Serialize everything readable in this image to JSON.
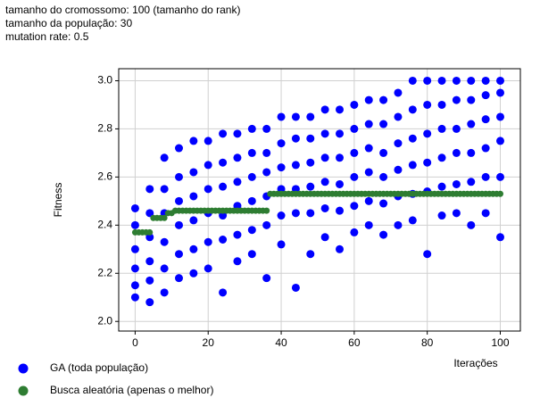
{
  "header": {
    "lines": [
      "tamanho do cromossomo: 100 (tamanho do rank)",
      "tamanho da população: 30",
      "mutation rate: 0.5"
    ]
  },
  "chart_data": {
    "type": "scatter",
    "x_label": "Iterações",
    "y_label": "Fitness",
    "xlim": [
      -4.5,
      105.5
    ],
    "ylim": [
      1.96,
      3.05
    ],
    "xticks": [
      0,
      20,
      40,
      60,
      80,
      100
    ],
    "yticks": [
      {
        "value": 2,
        "label": "2.0"
      },
      2.2,
      2.4,
      2.6,
      2.8,
      {
        "value": 3,
        "label": "3.0"
      }
    ],
    "grid": true,
    "series": [
      {
        "name": "GA (toda população)",
        "color": "#0000ff",
        "x": [
          0,
          0,
          0,
          0,
          0,
          0,
          4,
          4,
          4,
          4,
          4,
          4,
          8,
          8,
          8,
          8,
          8,
          8,
          12,
          12,
          12,
          12,
          12,
          12,
          16,
          16,
          16,
          16,
          16,
          16,
          20,
          20,
          20,
          20,
          20,
          20,
          24,
          24,
          24,
          24,
          24,
          24,
          28,
          28,
          28,
          28,
          28,
          28,
          32,
          32,
          32,
          32,
          32,
          32,
          36,
          36,
          36,
          36,
          36,
          36,
          40,
          40,
          40,
          40,
          40,
          40,
          44,
          44,
          44,
          44,
          44,
          44,
          48,
          48,
          48,
          48,
          48,
          48,
          52,
          52,
          52,
          52,
          52,
          52,
          56,
          56,
          56,
          56,
          56,
          56,
          60,
          60,
          60,
          60,
          60,
          60,
          64,
          64,
          64,
          64,
          64,
          64,
          68,
          68,
          68,
          68,
          68,
          68,
          72,
          72,
          72,
          72,
          72,
          72,
          76,
          76,
          76,
          76,
          76,
          76,
          80,
          80,
          80,
          80,
          80,
          80,
          84,
          84,
          84,
          84,
          84,
          84,
          88,
          88,
          88,
          88,
          88,
          88,
          92,
          92,
          92,
          92,
          92,
          92,
          96,
          96,
          96,
          96,
          96,
          96,
          100,
          100,
          100,
          100,
          100,
          100
        ],
        "values": [
          2.47,
          2.4,
          2.3,
          2.22,
          2.15,
          2.1,
          2.55,
          2.45,
          2.35,
          2.25,
          2.17,
          2.08,
          2.68,
          2.55,
          2.45,
          2.33,
          2.22,
          2.12,
          2.72,
          2.6,
          2.5,
          2.4,
          2.28,
          2.18,
          2.75,
          2.62,
          2.52,
          2.42,
          2.3,
          2.2,
          2.75,
          2.65,
          2.55,
          2.45,
          2.33,
          2.22,
          2.78,
          2.66,
          2.56,
          2.44,
          2.34,
          2.12,
          2.78,
          2.68,
          2.58,
          2.48,
          2.36,
          2.25,
          2.8,
          2.7,
          2.6,
          2.5,
          2.38,
          2.28,
          2.8,
          2.7,
          2.62,
          2.52,
          2.4,
          2.18,
          2.85,
          2.74,
          2.64,
          2.55,
          2.44,
          2.32,
          2.85,
          2.76,
          2.65,
          2.55,
          2.45,
          2.14,
          2.85,
          2.76,
          2.66,
          2.56,
          2.45,
          2.28,
          2.88,
          2.78,
          2.68,
          2.58,
          2.47,
          2.35,
          2.88,
          2.78,
          2.68,
          2.57,
          2.46,
          2.3,
          2.9,
          2.8,
          2.7,
          2.6,
          2.48,
          2.37,
          2.92,
          2.82,
          2.72,
          2.62,
          2.5,
          2.4,
          2.92,
          2.82,
          2.7,
          2.6,
          2.49,
          2.36,
          2.95,
          2.85,
          2.74,
          2.63,
          2.52,
          2.4,
          3.0,
          2.88,
          2.76,
          2.65,
          2.53,
          2.42,
          3.0,
          2.9,
          2.78,
          2.66,
          2.54,
          2.28,
          3.0,
          2.9,
          2.8,
          2.68,
          2.56,
          2.44,
          3.0,
          2.92,
          2.8,
          2.7,
          2.57,
          2.45,
          3.0,
          2.92,
          2.82,
          2.7,
          2.58,
          2.4,
          3.0,
          2.94,
          2.84,
          2.72,
          2.6,
          2.45,
          3.0,
          2.95,
          2.85,
          2.75,
          2.6,
          2.35
        ]
      },
      {
        "name": "Busca aleatória (apenas o melhor)",
        "color": "#2e7d32",
        "x": [
          0,
          1,
          2,
          3,
          4,
          5,
          6,
          7,
          8,
          9,
          10,
          11,
          12,
          13,
          14,
          15,
          16,
          17,
          18,
          19,
          20,
          21,
          22,
          23,
          24,
          25,
          26,
          27,
          28,
          29,
          30,
          31,
          32,
          33,
          34,
          35,
          36,
          37,
          38,
          39,
          40,
          41,
          42,
          43,
          44,
          45,
          46,
          47,
          48,
          49,
          50,
          51,
          52,
          53,
          54,
          55,
          56,
          57,
          58,
          59,
          60,
          61,
          62,
          63,
          64,
          65,
          66,
          67,
          68,
          69,
          70,
          71,
          72,
          73,
          74,
          75,
          76,
          77,
          78,
          79,
          80,
          81,
          82,
          83,
          84,
          85,
          86,
          87,
          88,
          89,
          90,
          91,
          92,
          93,
          94,
          95,
          96,
          97,
          98,
          99,
          100
        ],
        "values": [
          2.37,
          2.37,
          2.37,
          2.37,
          2.37,
          2.43,
          2.43,
          2.43,
          2.43,
          2.45,
          2.45,
          2.46,
          2.46,
          2.46,
          2.46,
          2.46,
          2.46,
          2.46,
          2.46,
          2.46,
          2.46,
          2.46,
          2.46,
          2.46,
          2.46,
          2.46,
          2.46,
          2.46,
          2.46,
          2.46,
          2.46,
          2.46,
          2.46,
          2.46,
          2.46,
          2.46,
          2.46,
          2.53,
          2.53,
          2.53,
          2.53,
          2.53,
          2.53,
          2.53,
          2.53,
          2.53,
          2.53,
          2.53,
          2.53,
          2.53,
          2.53,
          2.53,
          2.53,
          2.53,
          2.53,
          2.53,
          2.53,
          2.53,
          2.53,
          2.53,
          2.53,
          2.53,
          2.53,
          2.53,
          2.53,
          2.53,
          2.53,
          2.53,
          2.53,
          2.53,
          2.53,
          2.53,
          2.53,
          2.53,
          2.53,
          2.53,
          2.53,
          2.53,
          2.53,
          2.53,
          2.53,
          2.53,
          2.53,
          2.53,
          2.53,
          2.53,
          2.53,
          2.53,
          2.53,
          2.53,
          2.53,
          2.53,
          2.53,
          2.53,
          2.53,
          2.53,
          2.53,
          2.53,
          2.53,
          2.53,
          2.53
        ]
      }
    ]
  }
}
